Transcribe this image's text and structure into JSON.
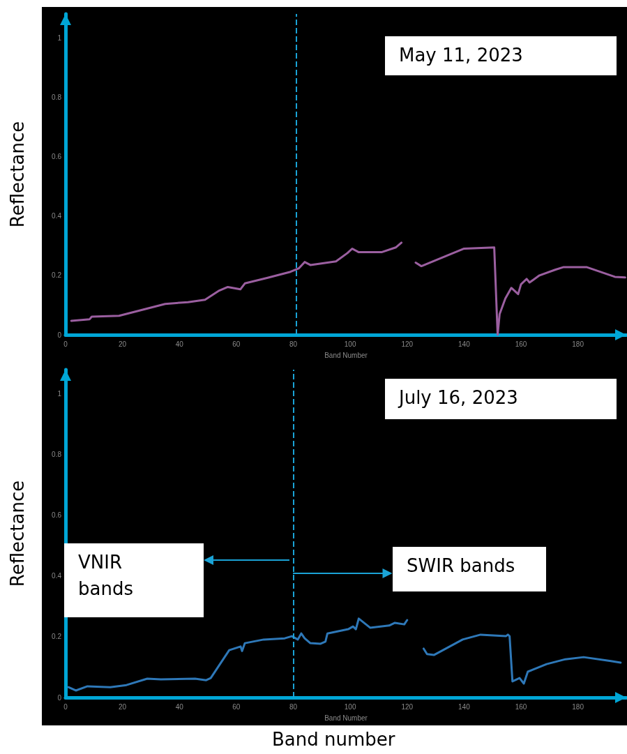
{
  "chart_data": [
    {
      "type": "line",
      "ylabel": "Reflectance",
      "xlabel": "Band Number",
      "annotations": [
        "May 11, 2023"
      ],
      "xlim": [
        0,
        197
      ],
      "xticks": [
        0,
        20,
        40,
        60,
        80,
        100,
        120,
        140,
        160,
        180
      ],
      "ylim": [
        0,
        1.08
      ],
      "yticks": [
        0,
        0.2,
        0.4,
        0.6,
        0.8,
        1
      ],
      "grid": false,
      "marker": "none",
      "line_style": "solid",
      "ref_lines": [
        {
          "axis": "x",
          "value": 81,
          "color": "#1aa3d6",
          "line_style": "dashed"
        }
      ],
      "series": [
        {
          "color": "#9b5fa0",
          "x": [
            2,
            8.4,
            9.2,
            18.8,
            35,
            43,
            49,
            54,
            57,
            61.4,
            63,
            71,
            79,
            82,
            84,
            86,
            95,
            99,
            100.7,
            103,
            111,
            116,
            118,
            120,
            123,
            125,
            129,
            140,
            150.6,
            151.8,
            152.5,
            154.5,
            156.6,
            159,
            160,
            162,
            163,
            166.5,
            172,
            175,
            183,
            193,
            196.6
          ],
          "values": [
            0.047,
            0.052,
            0.061,
            0.064,
            0.104,
            0.11,
            0.118,
            0.149,
            0.161,
            0.153,
            0.173,
            0.192,
            0.212,
            0.224,
            0.245,
            0.235,
            0.247,
            0.275,
            0.29,
            0.278,
            0.278,
            0.294,
            0.31,
            null,
            0.243,
            0.231,
            0.247,
            0.29,
            0.294,
            0,
            0.07,
            0.122,
            0.158,
            0.137,
            0.17,
            0.188,
            0.176,
            0.2,
            0.219,
            0.228,
            0.228,
            0.195,
            0.193
          ]
        }
      ]
    },
    {
      "type": "line",
      "ylabel": "Reflectance",
      "xlabel": "Band Number",
      "annotations": [
        "July 16, 2023",
        "VNIR bands",
        {
          "text": "SWIR bands",
          "x": 80,
          "y": 0.41
        },
        "Band number"
      ],
      "xlim": [
        0,
        197
      ],
      "xticks": [
        0,
        20,
        40,
        60,
        80,
        100,
        120,
        140,
        160,
        180
      ],
      "ylim": [
        0,
        1.08
      ],
      "yticks": [
        0,
        0.2,
        0.4,
        0.6,
        0.8,
        1
      ],
      "grid": false,
      "marker": "none",
      "line_style": "solid",
      "ref_lines": [
        {
          "axis": "x",
          "value": 80,
          "color": "#1aa3d6",
          "line_style": "dashed"
        }
      ],
      "series": [
        {
          "color": "#2e78b8",
          "x": [
            1,
            3.6,
            7.7,
            15.7,
            21.4,
            28.7,
            33.5,
            45.5,
            49.4,
            51,
            57.5,
            61.5,
            62,
            63,
            69.6,
            77,
            79.5,
            81.6,
            82.8,
            84,
            86,
            89.6,
            91.3,
            92,
            99.3,
            101,
            102,
            103,
            107,
            113.7,
            115.7,
            119,
            120,
            123,
            125.8,
            127,
            129.4,
            139.5,
            145.8,
            154.7,
            155.4,
            156,
            157,
            159.5,
            161,
            162.4,
            169,
            175.6,
            182,
            191.6,
            195
          ],
          "values": [
            0.034,
            0.023,
            0.037,
            0.034,
            0.041,
            0.062,
            0.06,
            0.062,
            0.057,
            0.064,
            0.156,
            0.168,
            0.153,
            0.179,
            0.191,
            0.195,
            0.202,
            0.191,
            0.211,
            0.195,
            0.179,
            0.177,
            0.184,
            0.211,
            0.225,
            0.234,
            0.225,
            0.26,
            0.23,
            0.237,
            0.246,
            0.241,
            0.255,
            null,
            0.161,
            0.143,
            0.14,
            0.191,
            0.207,
            0.202,
            0.207,
            0.202,
            0.053,
            0.064,
            0.046,
            0.085,
            0.11,
            0.126,
            0.133,
            0.12,
            0.115
          ]
        }
      ]
    }
  ]
}
